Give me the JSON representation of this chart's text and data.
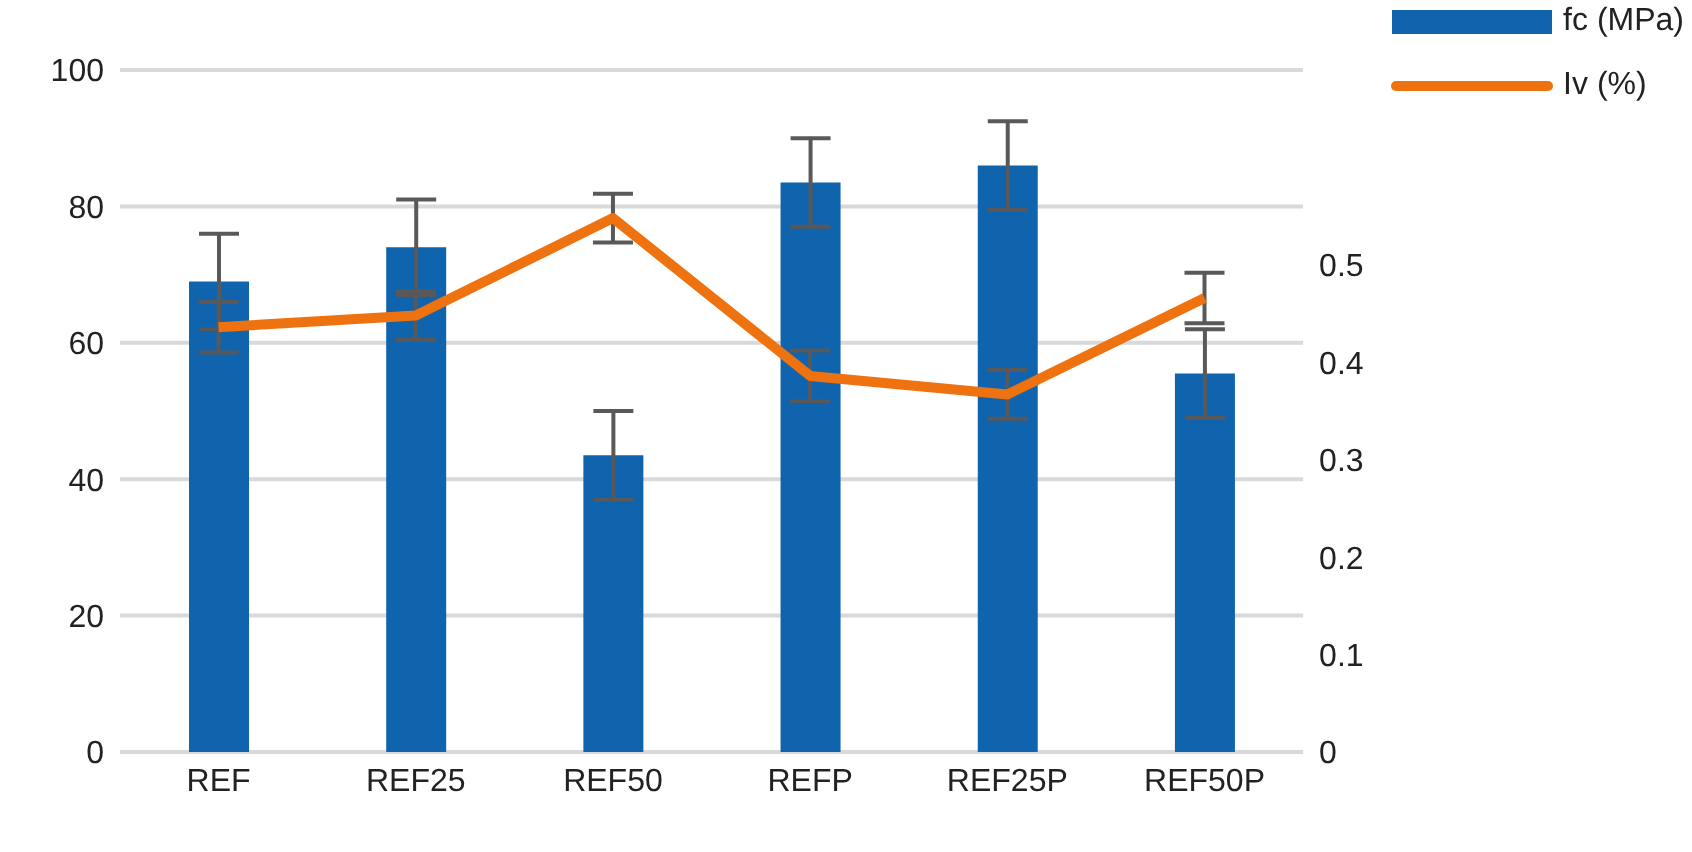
{
  "chart_data": {
    "type": "bar",
    "categories": [
      "REF",
      "REF25",
      "REF50",
      "REFP",
      "REF25P",
      "REF50P"
    ],
    "series": [
      {
        "name": "fc (MPa)",
        "color": "#0f64ad",
        "values": [
          69,
          74,
          43.5,
          83.5,
          86,
          55.5
        ],
        "errors": [
          7,
          7,
          6.5,
          6.5,
          6.5,
          6.5
        ]
      },
      {
        "name": "Iv (%)",
        "type": "line",
        "axis": "y2",
        "color": "#ee7210",
        "values": [
          0.436,
          0.448,
          0.548,
          0.386,
          0.367,
          0.466
        ],
        "errors": [
          0.026,
          0.025,
          0.025,
          0.026,
          0.025,
          0.026
        ]
      }
    ],
    "ylim": [
      0,
      100
    ],
    "yticks": [
      0,
      20,
      40,
      60,
      80,
      100
    ],
    "y2lim": [
      0,
      0.7
    ],
    "y2ticks": [
      0,
      0.1,
      0.2,
      0.3,
      0.4,
      0.5
    ],
    "grid": "y",
    "legend": "top right",
    "marker": "none",
    "line_style": "solid"
  }
}
